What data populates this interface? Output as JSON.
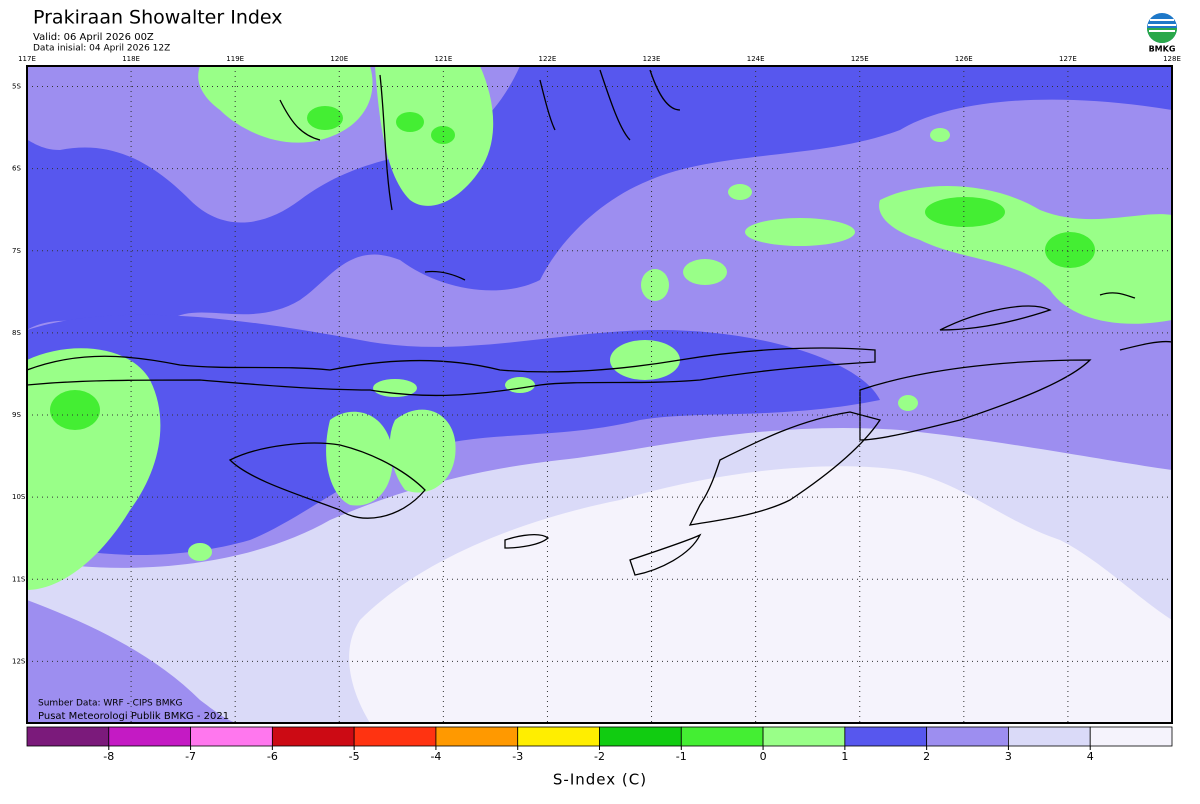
{
  "header": {
    "title": "Prakiraan Showalter Index",
    "valid": "Valid: 06 April 2026 00Z",
    "initial": "Data inisial: 04 April 2026 12Z",
    "logo_text": "BMKG"
  },
  "map": {
    "xlim": [
      117,
      128
    ],
    "ylim": [
      -12.75,
      -4.75
    ],
    "xticks": [
      {
        "value": 117,
        "label": "117E"
      },
      {
        "value": 118,
        "label": "118E"
      },
      {
        "value": 119,
        "label": "119E"
      },
      {
        "value": 120,
        "label": "120E"
      },
      {
        "value": 121,
        "label": "121E"
      },
      {
        "value": 122,
        "label": "122E"
      },
      {
        "value": 123,
        "label": "123E"
      },
      {
        "value": 124,
        "label": "124E"
      },
      {
        "value": 125,
        "label": "125E"
      },
      {
        "value": 126,
        "label": "126E"
      },
      {
        "value": 127,
        "label": "127E"
      },
      {
        "value": 128,
        "label": "128E"
      }
    ],
    "yticks": [
      {
        "value": -5,
        "label": "5S"
      },
      {
        "value": -6,
        "label": "6S"
      },
      {
        "value": -7,
        "label": "7S"
      },
      {
        "value": -8,
        "label": "8S"
      },
      {
        "value": -9,
        "label": "9S"
      },
      {
        "value": -10,
        "label": "10S"
      },
      {
        "value": -11,
        "label": "11S"
      },
      {
        "value": -12,
        "label": "12S"
      }
    ],
    "grid": true,
    "source": "Sumber Data: WRF - CIPS BMKG",
    "credit": "Pusat Meteorologi Publik BMKG - 2021"
  },
  "colorbar": {
    "lim": [
      -9,
      5
    ],
    "colors": [
      "#7b1a7b",
      "#c41ac4",
      "#ff77ee",
      "#cc0a14",
      "#ff3311",
      "#ff9900",
      "#ffee00",
      "#11cc11",
      "#44ee33",
      "#99ff88",
      "#5757ee",
      "#9d8ef0",
      "#dadaf8",
      "#f5f3fc"
    ],
    "ticks": [
      -8,
      -7,
      -6,
      -5,
      -4,
      -3,
      -2,
      -1,
      0,
      1,
      2,
      3,
      4
    ],
    "label": "S-Index (C)"
  }
}
